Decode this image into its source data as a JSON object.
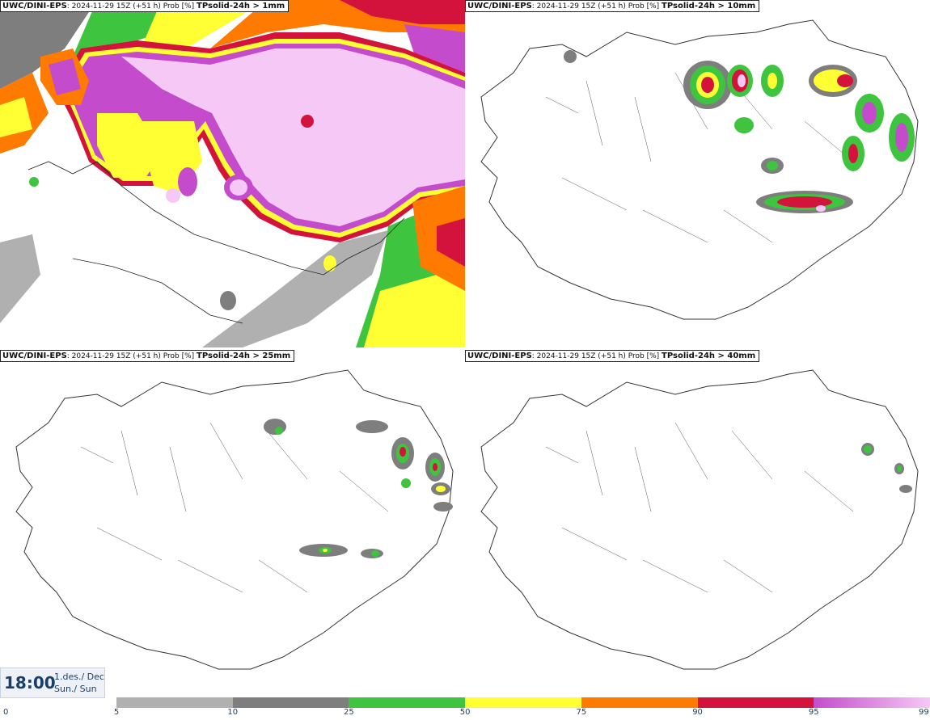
{
  "panels": [
    {
      "source": "UWC/DINI-EPS",
      "meta": ": 2024-11-29 15Z (+51 h) Prob [%] ",
      "variable": "TPsolid-24h > 1mm"
    },
    {
      "source": "UWC/DINI-EPS",
      "meta": ": 2024-11-29 15Z (+51 h) Prob [%] ",
      "variable": "TPsolid-24h > 10mm"
    },
    {
      "source": "UWC/DINI-EPS",
      "meta": ": 2024-11-29 15Z (+51 h) Prob [%] ",
      "variable": "TPsolid-24h > 25mm"
    },
    {
      "source": "UWC/DINI-EPS",
      "meta": ": 2024-11-29 15Z (+51 h) Prob [%] ",
      "variable": "TPsolid-24h > 40mm"
    }
  ],
  "clock": {
    "time": "18:00",
    "date": "1.des./ Dec",
    "day": "Sun./ Sun"
  },
  "legend": {
    "ticks": [
      "0",
      "5",
      "10",
      "25",
      "50",
      "75",
      "90",
      "95",
      "99"
    ],
    "colors": [
      "#b0b0b0",
      "#7e7e7e",
      "#3fc43f",
      "#ffff33",
      "#ff7a00",
      "#d4133c",
      "#c44ccc"
    ],
    "last_gradient": [
      "#c44ccc",
      "#f6c8f6"
    ]
  }
}
